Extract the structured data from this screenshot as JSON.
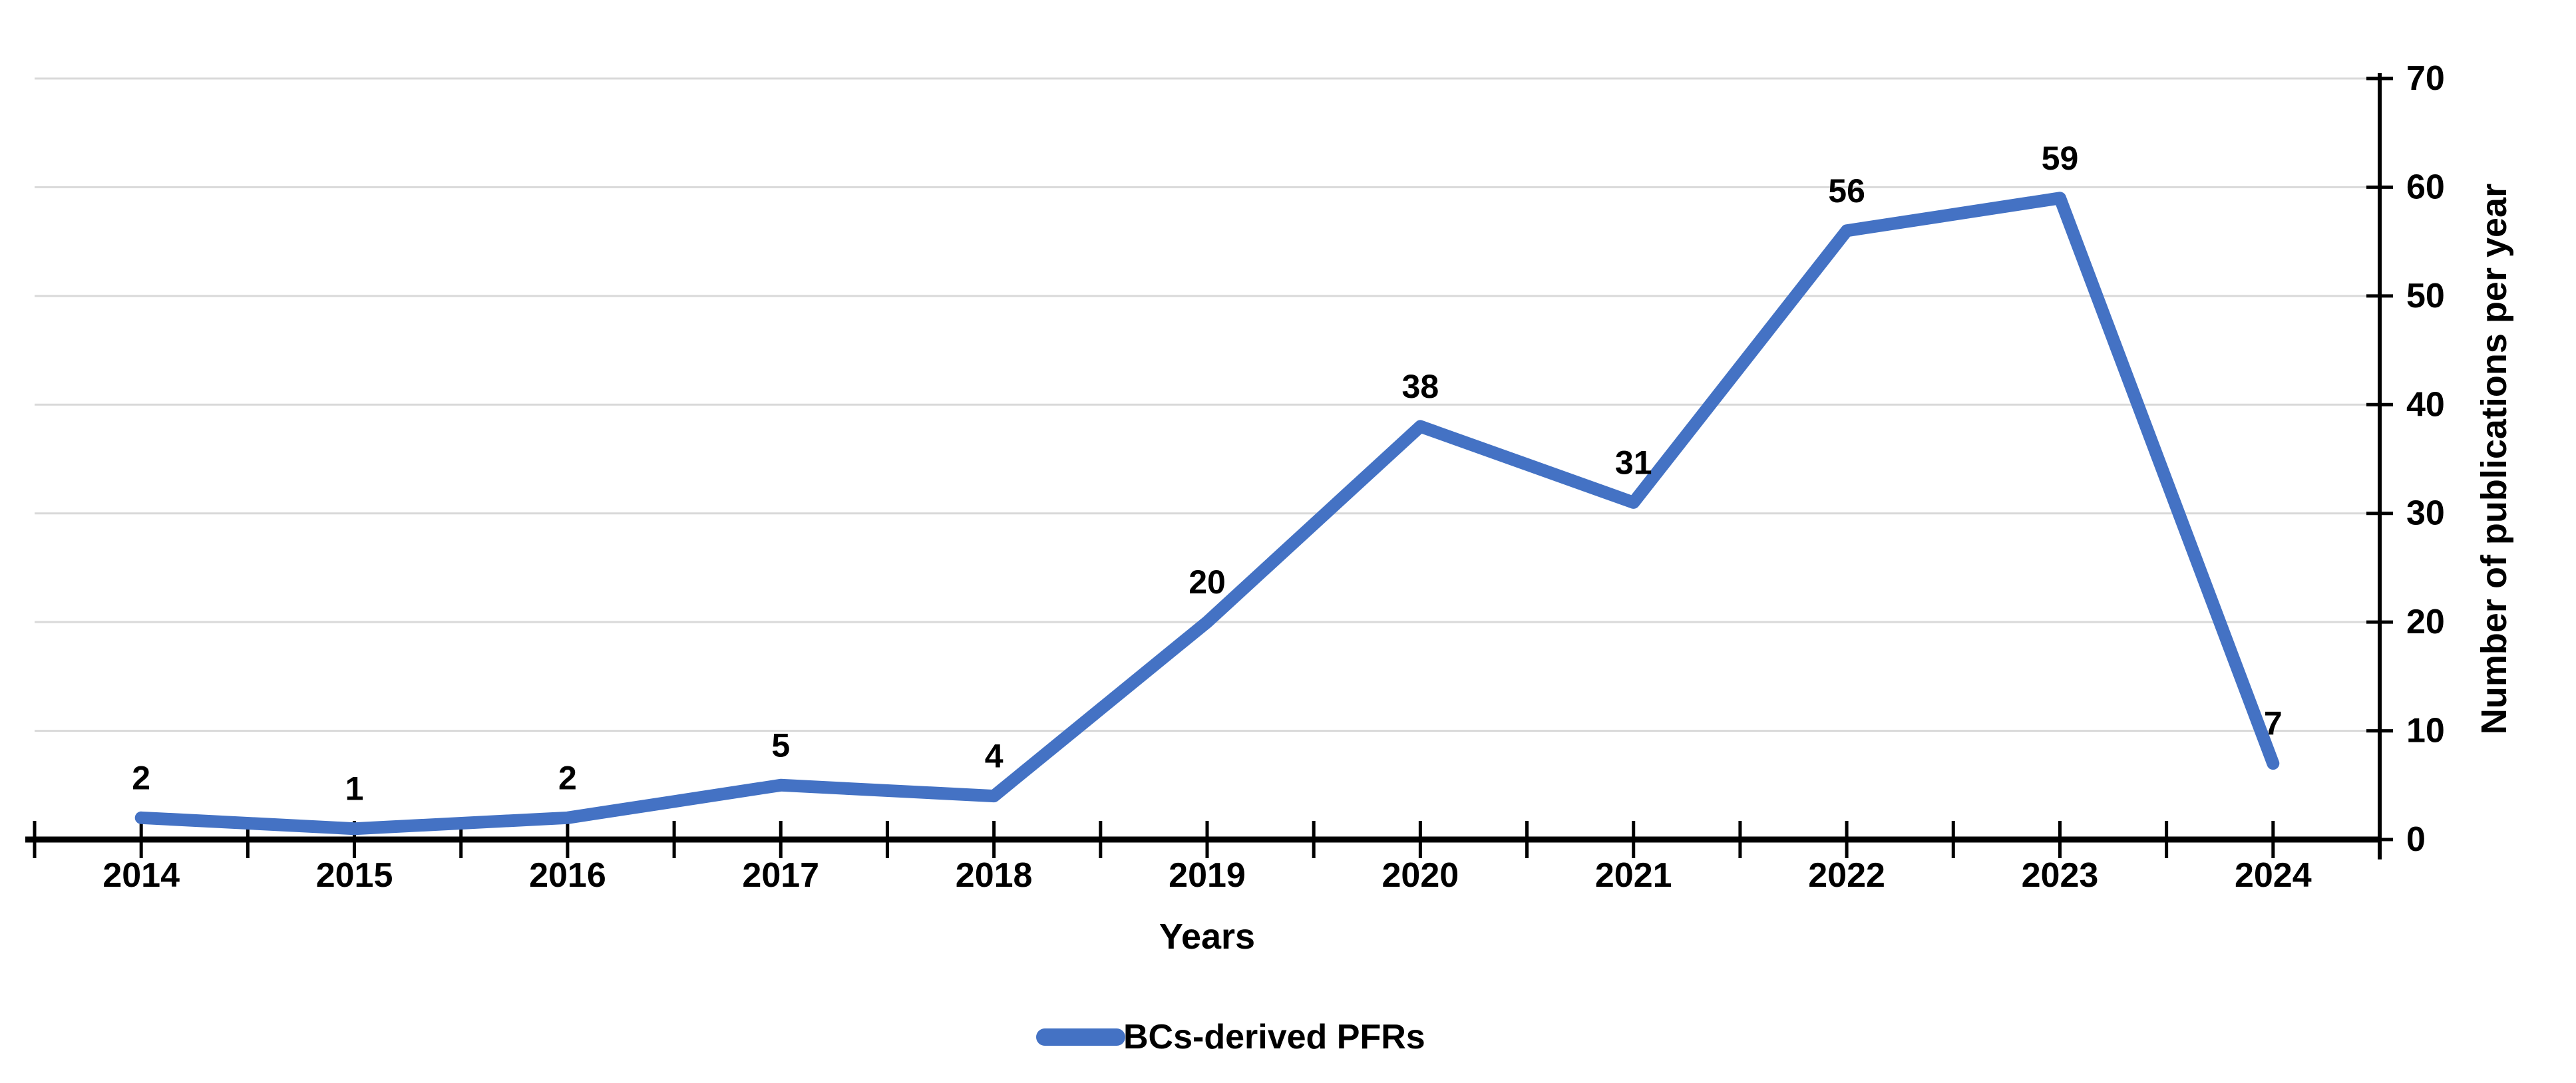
{
  "chart_data": {
    "type": "line",
    "title": "",
    "categories": [
      "2014",
      "2015",
      "2016",
      "2017",
      "2018",
      "2019",
      "2020",
      "2021",
      "2022",
      "2023",
      "2024"
    ],
    "series": [
      {
        "name": "BCs-derived PFRs",
        "values": [
          2,
          1,
          2,
          5,
          4,
          20,
          38,
          31,
          56,
          59,
          7
        ],
        "color": "#4472C4"
      }
    ],
    "data_labels": [
      "2",
      "1",
      "2",
      "5",
      "4",
      "20",
      "38",
      "31",
      "56",
      "59",
      "7"
    ],
    "xlabel": "Years",
    "ylabel": "Number of publications per year",
    "ylim": [
      0,
      70
    ],
    "yticks": [
      0,
      10,
      20,
      30,
      40,
      50,
      60,
      70
    ],
    "ytick_labels": [
      "0",
      "10",
      "20",
      "30",
      "40",
      "50",
      "60",
      "70"
    ],
    "y_axis_side": "right",
    "grid": "horizontal",
    "legend_position": "bottom-center",
    "colors": {
      "line": "#4472C4",
      "gridline": "#D9D9D9",
      "axis": "#000000",
      "text": "#000000",
      "background": "#FFFFFF"
    }
  },
  "legend": {
    "items": [
      {
        "label": "BCs-derived PFRs",
        "color": "#4472C4"
      }
    ]
  }
}
